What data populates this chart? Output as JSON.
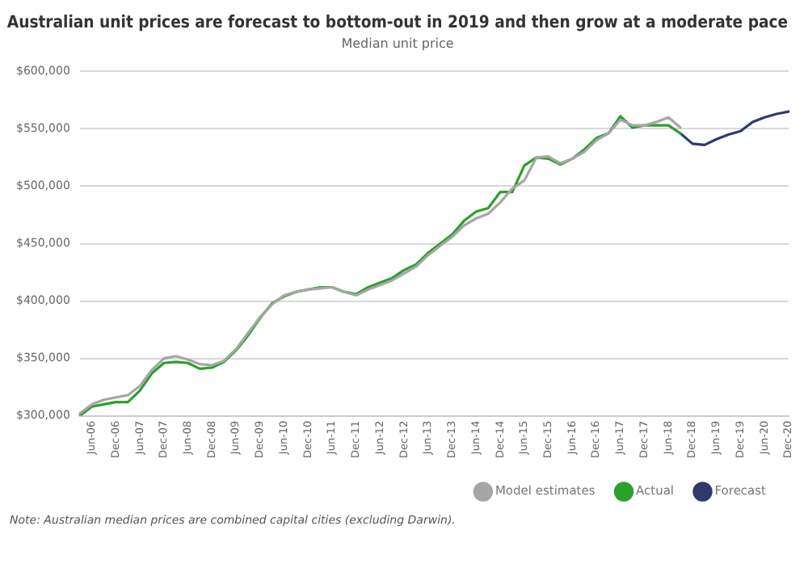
{
  "chart_data": {
    "type": "line",
    "title": "Australian unit prices are forecast to bottom-out in 2019 and then grow at a moderate pace",
    "subtitle": "Median unit price",
    "categories": [
      null,
      "Jun-06",
      null,
      "Dec-06",
      null,
      "Jun-07",
      null,
      "Dec-07",
      null,
      "Jun-08",
      null,
      "Dec-08",
      null,
      "Jun-09",
      null,
      "Dec-09",
      null,
      "Jun-10",
      null,
      "Dec-10",
      null,
      "Jun-11",
      null,
      "Dec-11",
      null,
      "Jun-12",
      null,
      "Dec-12",
      null,
      "Jun-13",
      null,
      "Dec-13",
      null,
      "Jun-14",
      null,
      "Dec-14",
      null,
      "Jun-15",
      null,
      "Dec-15",
      null,
      "Jun-16",
      null,
      "Dec-16",
      null,
      "Jun-17",
      null,
      "Dec-17",
      null,
      "Jun-18",
      null,
      "Dec-18",
      null,
      "Jun-19",
      null,
      "Dec-19",
      null,
      "Jun-20",
      null,
      "Dec-20"
    ],
    "series": [
      {
        "name": "Model estimates",
        "color": "#a6a6a6",
        "values": [
          302000,
          310000,
          314000,
          316000,
          318000,
          326000,
          340000,
          350000,
          352000,
          349000,
          345000,
          344000,
          348000,
          358000,
          372000,
          386000,
          397000,
          405000,
          408000,
          410000,
          411000,
          412000,
          408000,
          405000,
          410000,
          414000,
          418000,
          424000,
          430000,
          440000,
          448000,
          456000,
          466000,
          472000,
          476000,
          486000,
          498000,
          505000,
          525000,
          526000,
          520000,
          524000,
          530000,
          540000,
          546000,
          558000,
          553000,
          553000,
          556000,
          560000,
          551000,
          null,
          null,
          null,
          null,
          null,
          null,
          null,
          null,
          null
        ]
      },
      {
        "name": "Actual",
        "color": "#2ca02c",
        "values": [
          300000,
          308000,
          310000,
          312000,
          312000,
          322000,
          337000,
          346000,
          347000,
          346000,
          341000,
          342000,
          347000,
          357000,
          370000,
          385000,
          398000,
          404000,
          408000,
          410000,
          412000,
          412000,
          408000,
          406000,
          412000,
          416000,
          420000,
          427000,
          432000,
          442000,
          450000,
          458000,
          470000,
          478000,
          481000,
          495000,
          495000,
          518000,
          525000,
          524000,
          519000,
          524000,
          532000,
          542000,
          546000,
          561000,
          551000,
          553000,
          553000,
          553000,
          546000,
          null,
          null,
          null,
          null,
          null,
          null,
          null,
          null,
          null
        ]
      },
      {
        "name": "Forecast",
        "color": "#2e3a6e",
        "values": [
          null,
          null,
          null,
          null,
          null,
          null,
          null,
          null,
          null,
          null,
          null,
          null,
          null,
          null,
          null,
          null,
          null,
          null,
          null,
          null,
          null,
          null,
          null,
          null,
          null,
          null,
          null,
          null,
          null,
          null,
          null,
          null,
          null,
          null,
          null,
          null,
          null,
          null,
          null,
          null,
          null,
          null,
          null,
          null,
          null,
          null,
          null,
          null,
          null,
          null,
          546000,
          537000,
          536000,
          541000,
          545000,
          548000,
          556000,
          560000,
          563000,
          565000
        ]
      }
    ],
    "ylim": [
      300000,
      600000
    ],
    "yticks": [
      {
        "value": 300000,
        "label": "$300,000"
      },
      {
        "value": 350000,
        "label": "$350,000"
      },
      {
        "value": 400000,
        "label": "$400,000"
      },
      {
        "value": 450000,
        "label": "$450,000"
      },
      {
        "value": 500000,
        "label": "$500,000"
      },
      {
        "value": 550000,
        "label": "$550,000"
      },
      {
        "value": 600000,
        "label": "$600,000"
      }
    ],
    "grid": "y",
    "legend": "bottom",
    "marker": "none",
    "line_style": "solid",
    "annotations": [
      "Note: Australian median prices are combined capital cities (excluding Darwin)."
    ]
  }
}
